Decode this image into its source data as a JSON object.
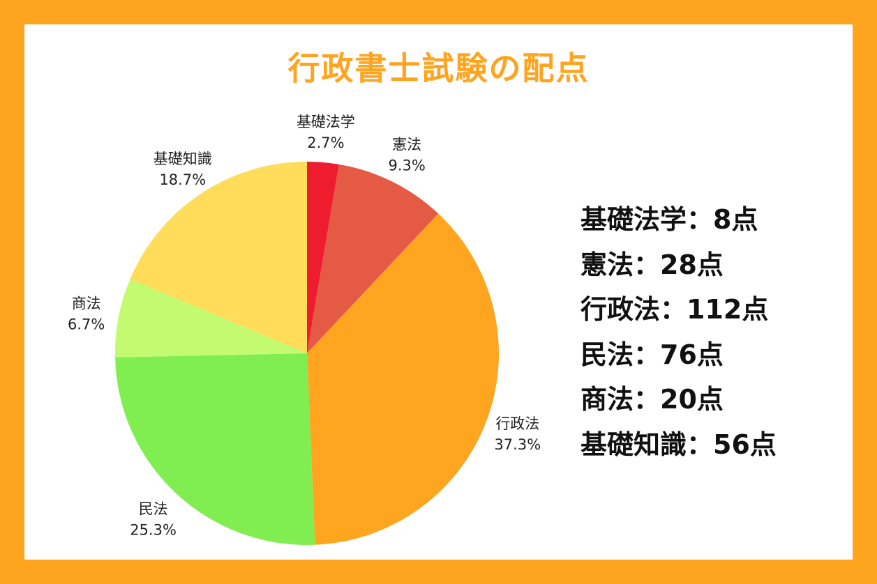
{
  "chart_data": {
    "type": "pie",
    "title": "行政書士試験の配点",
    "start": "top",
    "direction": "clockwise",
    "slices": [
      {
        "label": "基礎法学",
        "value": 8,
        "percent": "2.7%",
        "color": "#ED1C2E"
      },
      {
        "label": "憲法",
        "value": 28,
        "percent": "9.3%",
        "color": "#E55A45"
      },
      {
        "label": "行政法",
        "value": 112,
        "percent": "37.3%",
        "color": "#FFA520"
      },
      {
        "label": "民法",
        "value": 76,
        "percent": "25.3%",
        "color": "#80EE50"
      },
      {
        "label": "商法",
        "value": 20,
        "percent": "6.7%",
        "color": "#C3FA70"
      },
      {
        "label": "基礎知識",
        "value": 56,
        "percent": "18.7%",
        "color": "#FFDC5A"
      }
    ]
  },
  "legend": [
    "基礎法学：8点",
    "憲法：28点",
    "行政法：112点",
    "民法：76点",
    "商法：20点",
    "基礎知識：56点"
  ]
}
